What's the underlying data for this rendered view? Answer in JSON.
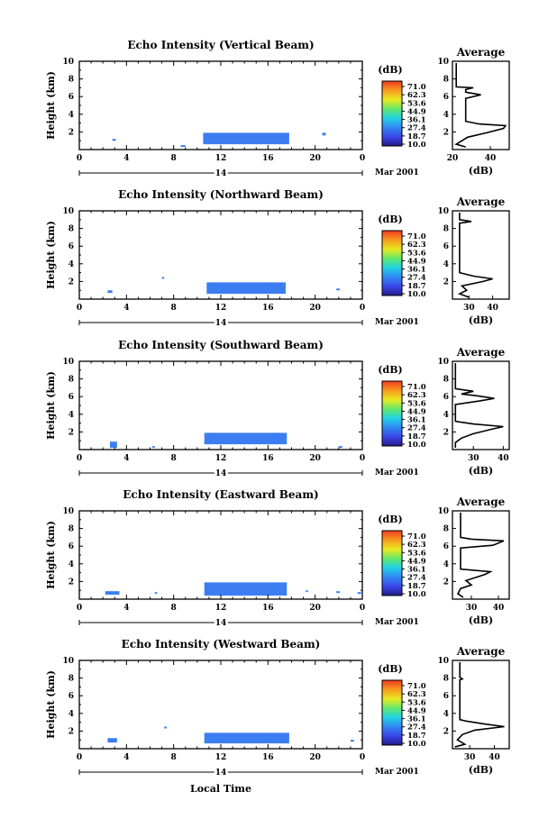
{
  "figure": {
    "x_axis_label": "Local Time",
    "date_label": "Mar 2001",
    "day_label": "14",
    "y_axis_label": "Height (km)",
    "colorbar_unit": "(dB)",
    "colorbar_ticks": [
      "71.0",
      "62.3",
      "53.6",
      "44.9",
      "36.1",
      "27.4",
      "18.7",
      "10.0"
    ],
    "colorbar_colors": [
      "#f03a22",
      "#f7981d",
      "#e8ea22",
      "#63e86a",
      "#22d3e4",
      "#2f8ff2",
      "#3a45e8",
      "#241a8a"
    ],
    "echo_color": "#3c7ef2",
    "profile_title": "Average",
    "profile_unit": "(dB)"
  },
  "chart_data": [
    {
      "type": "heatmap",
      "title": "Echo Intensity (Vertical Beam)",
      "xlabel": "Local Time",
      "ylabel": "Height (km)",
      "xlim": [
        0,
        24
      ],
      "ylim": [
        0,
        10
      ],
      "xticks": [
        "0",
        "4",
        "8",
        "12",
        "16",
        "20",
        "0"
      ],
      "yticks": [
        "2",
        "4",
        "6",
        "8",
        "10"
      ],
      "colorbar": {
        "label": "(dB)",
        "ticks": [
          71.0,
          62.3,
          53.6,
          44.9,
          36.1,
          27.4,
          18.7,
          10.0
        ]
      },
      "echo_patches": [
        {
          "t": [
            10.5,
            17.8
          ],
          "h": [
            0.6,
            1.9
          ]
        },
        {
          "t": [
            2.8,
            3.1
          ],
          "h": [
            1.0,
            1.2
          ]
        },
        {
          "t": [
            8.6,
            9.0
          ],
          "h": [
            0.3,
            0.5
          ]
        },
        {
          "t": [
            20.6,
            20.9
          ],
          "h": [
            1.6,
            1.9
          ]
        }
      ],
      "profile": {
        "title": "Average",
        "xlabel": "(dB)",
        "xlim": [
          20,
          50
        ],
        "ylim": [
          0,
          10
        ],
        "xticks": [
          "20",
          "40"
        ],
        "yticks": [
          "2",
          "4",
          "6",
          "8",
          "10"
        ],
        "points": [
          [
            27,
            0.3
          ],
          [
            22,
            0.6
          ],
          [
            25,
            1.0
          ],
          [
            28,
            1.4
          ],
          [
            38,
            1.9
          ],
          [
            47,
            2.4
          ],
          [
            48,
            2.7
          ],
          [
            34,
            2.9
          ],
          [
            27,
            3.2
          ],
          [
            27,
            5.8
          ],
          [
            35,
            6.2
          ],
          [
            27,
            6.5
          ],
          [
            27,
            6.8
          ],
          [
            31,
            7.0
          ],
          [
            22,
            7.1
          ],
          [
            22,
            9.8
          ]
        ]
      }
    },
    {
      "type": "heatmap",
      "title": "Echo Intensity (Northward Beam)",
      "xlabel": "Local Time",
      "ylabel": "Height (km)",
      "xlim": [
        0,
        24
      ],
      "ylim": [
        0,
        10
      ],
      "xticks": [
        "0",
        "4",
        "8",
        "12",
        "16",
        "20",
        "0"
      ],
      "yticks": [
        "2",
        "4",
        "6",
        "8",
        "10"
      ],
      "colorbar": {
        "label": "(dB)",
        "ticks": [
          71.0,
          62.3,
          53.6,
          44.9,
          36.1,
          27.4,
          18.7,
          10.0
        ]
      },
      "echo_patches": [
        {
          "t": [
            10.8,
            17.5
          ],
          "h": [
            0.6,
            1.9
          ]
        },
        {
          "t": [
            2.4,
            2.8
          ],
          "h": [
            0.7,
            1.0
          ]
        },
        {
          "t": [
            7.0,
            7.2
          ],
          "h": [
            2.3,
            2.5
          ]
        },
        {
          "t": [
            21.8,
            22.1
          ],
          "h": [
            1.0,
            1.2
          ]
        }
      ],
      "profile": {
        "title": "Average",
        "xlabel": "(dB)",
        "xlim": [
          23,
          47
        ],
        "ylim": [
          0,
          10
        ],
        "xticks": [
          "30",
          "40"
        ],
        "yticks": [
          "2",
          "4",
          "6",
          "8",
          "10"
        ],
        "points": [
          [
            30,
            0.2
          ],
          [
            26,
            0.6
          ],
          [
            29,
            1.0
          ],
          [
            27,
            1.5
          ],
          [
            36,
            2.0
          ],
          [
            40,
            2.3
          ],
          [
            32,
            2.6
          ],
          [
            26,
            3.0
          ],
          [
            26,
            8.6
          ],
          [
            31,
            8.8
          ],
          [
            26,
            9.0
          ],
          [
            26,
            9.8
          ]
        ]
      }
    },
    {
      "type": "heatmap",
      "title": "Echo Intensity (Southward Beam)",
      "xlabel": "Local Time",
      "ylabel": "Height (km)",
      "xlim": [
        0,
        24
      ],
      "ylim": [
        0,
        10
      ],
      "xticks": [
        "0",
        "4",
        "8",
        "12",
        "16",
        "20",
        "0"
      ],
      "yticks": [
        "2",
        "4",
        "6",
        "8",
        "10"
      ],
      "colorbar": {
        "label": "(dB)",
        "ticks": [
          71.0,
          62.3,
          53.6,
          44.9,
          36.1,
          27.4,
          18.7,
          10.0
        ]
      },
      "echo_patches": [
        {
          "t": [
            10.6,
            17.6
          ],
          "h": [
            0.6,
            1.9
          ]
        },
        {
          "t": [
            2.6,
            3.2
          ],
          "h": [
            0.2,
            0.9
          ]
        },
        {
          "t": [
            6.2,
            6.4
          ],
          "h": [
            0.2,
            0.4
          ]
        },
        {
          "t": [
            22.0,
            22.3
          ],
          "h": [
            0.2,
            0.4
          ]
        }
      ],
      "profile": {
        "title": "Average",
        "xlabel": "(dB)",
        "xlim": [
          23,
          42
        ],
        "ylim": [
          0,
          10
        ],
        "xticks": [
          "30",
          "40"
        ],
        "yticks": [
          "2",
          "4",
          "6",
          "8",
          "10"
        ],
        "points": [
          [
            24,
            0.2
          ],
          [
            24,
            0.8
          ],
          [
            26,
            1.3
          ],
          [
            30,
            1.8
          ],
          [
            36,
            2.3
          ],
          [
            40,
            2.6
          ],
          [
            30,
            2.9
          ],
          [
            24,
            3.2
          ],
          [
            24,
            5.1
          ],
          [
            32,
            5.5
          ],
          [
            37,
            5.8
          ],
          [
            31,
            6.1
          ],
          [
            26,
            6.3
          ],
          [
            30,
            6.6
          ],
          [
            24,
            6.9
          ],
          [
            24,
            9.8
          ]
        ]
      }
    },
    {
      "type": "heatmap",
      "title": "Echo Intensity (Eastward Beam)",
      "xlabel": "Local Time",
      "ylabel": "Height (km)",
      "xlim": [
        0,
        24
      ],
      "ylim": [
        0,
        10
      ],
      "xticks": [
        "0",
        "4",
        "8",
        "12",
        "16",
        "20",
        "0"
      ],
      "yticks": [
        "2",
        "4",
        "6",
        "8",
        "10"
      ],
      "colorbar": {
        "label": "(dB)",
        "ticks": [
          71.0,
          62.3,
          53.6,
          44.9,
          36.1,
          27.4,
          18.7,
          10.0
        ]
      },
      "echo_patches": [
        {
          "t": [
            10.6,
            17.6
          ],
          "h": [
            0.4,
            1.9
          ]
        },
        {
          "t": [
            2.2,
            3.4
          ],
          "h": [
            0.5,
            0.9
          ]
        },
        {
          "t": [
            6.4,
            6.6
          ],
          "h": [
            0.6,
            0.8
          ]
        },
        {
          "t": [
            19.2,
            19.4
          ],
          "h": [
            0.8,
            1.0
          ]
        },
        {
          "t": [
            21.8,
            22.1
          ],
          "h": [
            0.7,
            0.9
          ]
        },
        {
          "t": [
            23.6,
            23.9
          ],
          "h": [
            0.6,
            0.8
          ]
        }
      ],
      "profile": {
        "title": "Average",
        "xlabel": "(dB)",
        "xlim": [
          23,
          44
        ],
        "ylim": [
          0,
          10
        ],
        "xticks": [
          "30",
          "40"
        ],
        "yticks": [
          "2",
          "4",
          "6",
          "8",
          "10"
        ],
        "points": [
          [
            27,
            0.2
          ],
          [
            25,
            0.6
          ],
          [
            26,
            1.2
          ],
          [
            30,
            1.6
          ],
          [
            28,
            2.1
          ],
          [
            35,
            2.8
          ],
          [
            37,
            3.1
          ],
          [
            26,
            3.4
          ],
          [
            26,
            5.8
          ],
          [
            38,
            6.1
          ],
          [
            42,
            6.6
          ],
          [
            30,
            6.8
          ],
          [
            26,
            7.0
          ],
          [
            26,
            9.8
          ]
        ]
      }
    },
    {
      "type": "heatmap",
      "title": "Echo Intensity (Westward Beam)",
      "xlabel": "Local Time",
      "ylabel": "Height (km)",
      "xlim": [
        0,
        24
      ],
      "ylim": [
        0,
        10
      ],
      "xticks": [
        "0",
        "4",
        "8",
        "12",
        "16",
        "20",
        "0"
      ],
      "yticks": [
        "2",
        "4",
        "6",
        "8",
        "10"
      ],
      "colorbar": {
        "label": "(dB)",
        "ticks": [
          71.0,
          62.3,
          53.6,
          44.9,
          36.1,
          27.4,
          18.7,
          10.0
        ]
      },
      "echo_patches": [
        {
          "t": [
            10.6,
            17.8
          ],
          "h": [
            0.6,
            1.8
          ]
        },
        {
          "t": [
            2.4,
            3.2
          ],
          "h": [
            0.7,
            1.2
          ]
        },
        {
          "t": [
            7.2,
            7.4
          ],
          "h": [
            2.3,
            2.5
          ]
        },
        {
          "t": [
            23.0,
            23.3
          ],
          "h": [
            0.8,
            1.0
          ]
        }
      ],
      "profile": {
        "title": "Average",
        "xlabel": "(dB)",
        "xlim": [
          23,
          46
        ],
        "ylim": [
          0,
          10
        ],
        "xticks": [
          "30",
          "40"
        ],
        "yticks": [
          "2",
          "4",
          "6",
          "8",
          "10"
        ],
        "points": [
          [
            24,
            0.2
          ],
          [
            28,
            0.5
          ],
          [
            25,
            1.0
          ],
          [
            27,
            1.6
          ],
          [
            32,
            2.1
          ],
          [
            44,
            2.5
          ],
          [
            36,
            2.8
          ],
          [
            29,
            3.1
          ],
          [
            26,
            3.3
          ],
          [
            26,
            7.8
          ],
          [
            27,
            7.9
          ],
          [
            26,
            8.1
          ],
          [
            26,
            9.8
          ]
        ]
      }
    }
  ]
}
